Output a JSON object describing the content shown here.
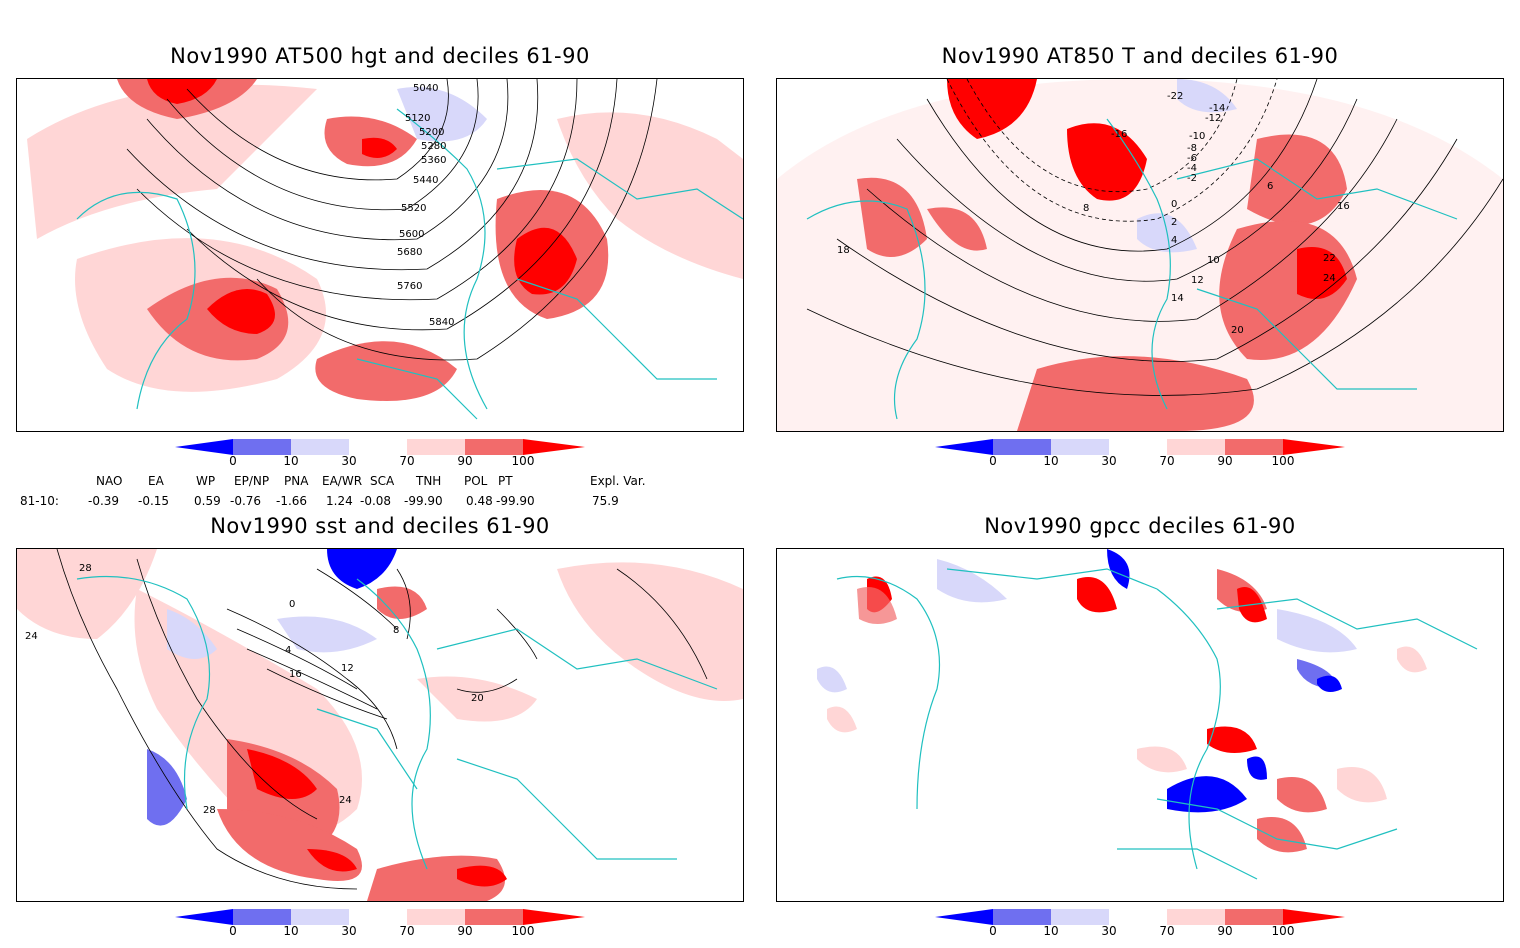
{
  "panels": [
    {
      "title": "Nov1990 AT500 hgt and deciles 61-90",
      "contour_labels": [
        "5040",
        "5120",
        "5200",
        "5280",
        "5360",
        "5440",
        "5520",
        "5600",
        "5680",
        "5760",
        "5840"
      ]
    },
    {
      "title": "Nov1990 AT850 T and deciles 61-90",
      "contour_labels": [
        "-22",
        "-14",
        "-12",
        "-16",
        "-10",
        "-8",
        "-6",
        "-4",
        "-2",
        "0",
        "2",
        "4",
        "6",
        "8",
        "10",
        "12",
        "14",
        "16",
        "18",
        "20",
        "22",
        "24"
      ]
    },
    {
      "title": "Nov1990 sst and deciles 61-90",
      "contour_labels": [
        "28",
        "24",
        "0",
        "4",
        "8",
        "12",
        "16",
        "20",
        "24",
        "28"
      ]
    },
    {
      "title": "Nov1990 gpcc deciles 61-90",
      "contour_labels": []
    }
  ],
  "colorbar": {
    "labels": [
      "0",
      "10",
      "30",
      "70",
      "90",
      "100"
    ],
    "colors": [
      "#0000ff",
      "#6f6ff0",
      "#d8d8fa",
      "#ffffff",
      "#ffd6d6",
      "#f26b6b",
      "#ff0000"
    ]
  },
  "indices": {
    "headers": [
      "NAO",
      "EA",
      "WP",
      "EP/NP",
      "PNA",
      "EA/WR",
      "SCA",
      "TNH",
      "POL",
      "PT",
      "Expl. Var."
    ],
    "row_label": "81-10:",
    "values": [
      "-0.39",
      "-0.15",
      "0.59",
      "-0.76",
      "-1.66",
      "1.24",
      "-0.08",
      "-99.90",
      "0.48",
      "-99.90",
      "75.9"
    ]
  },
  "colors": {
    "coast": "#20c0c0",
    "contour": "#000000"
  }
}
